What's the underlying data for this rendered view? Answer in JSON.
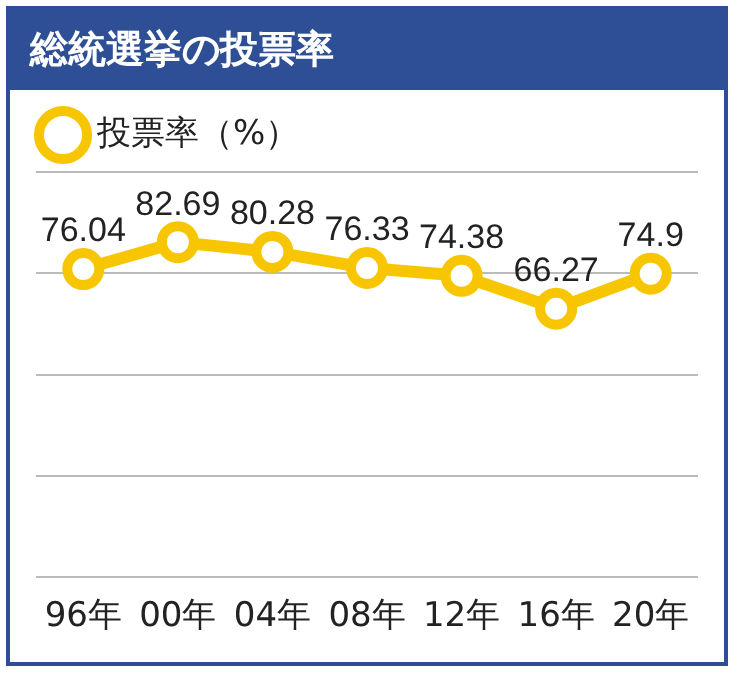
{
  "chart_data": {
    "type": "line",
    "title": "総統選挙の投票率",
    "categories": [
      "96年",
      "00年",
      "04年",
      "08年",
      "12年",
      "16年",
      "20年"
    ],
    "series": [
      {
        "name": "投票率（%）",
        "color": "#f7c600",
        "values": [
          76.04,
          82.69,
          80.28,
          76.33,
          74.38,
          66.27,
          74.9
        ]
      }
    ],
    "ylim": [
      0,
      100
    ],
    "yticks": [
      0,
      25,
      50,
      75,
      100
    ],
    "grid": "y",
    "tick_labels": "x",
    "legend": "top left",
    "marker": "circle",
    "line_style": "solid",
    "data_labels": true
  }
}
